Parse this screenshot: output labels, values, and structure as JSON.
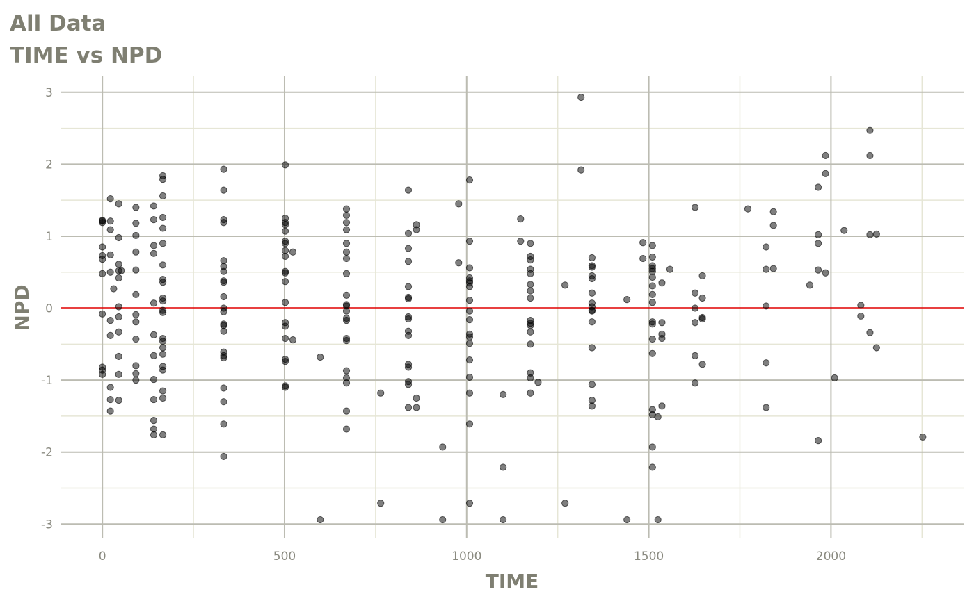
{
  "chart_data": {
    "type": "scatter",
    "title": "All Data",
    "subtitle": "TIME vs NPD",
    "xlabel": "TIME",
    "ylabel": "NPD",
    "xlim": [
      -113,
      2364
    ],
    "ylim": [
      -3.2,
      3.22
    ],
    "x_ticks": [
      0,
      500,
      1000,
      1500,
      2000
    ],
    "x_tick_labels": [
      "0",
      "500",
      "1000",
      "1500",
      "2000"
    ],
    "y_ticks": [
      -3,
      -2,
      -1,
      0,
      1,
      2,
      3
    ],
    "y_tick_labels": [
      "-3",
      "-2",
      "-1",
      "0",
      "1",
      "2",
      "3"
    ],
    "grid": true,
    "reference_line": {
      "y": 0,
      "color": "#e00000"
    },
    "point_color": "#000000",
    "point_alpha": 0.5,
    "groups": [
      {
        "x": 0,
        "y": [
          1.21,
          1.19,
          1.22,
          0.85,
          0.73,
          0.68,
          0.48,
          -0.08,
          -0.82,
          -0.86,
          -0.92
        ]
      },
      {
        "x": 22,
        "y": [
          1.52,
          1.21,
          1.09,
          0.74,
          0.5,
          -0.17,
          -0.38,
          -1.1,
          -1.27,
          -1.43
        ]
      },
      {
        "x": 31,
        "y": [
          0.27
        ]
      },
      {
        "x": 45,
        "y": [
          1.45,
          0.98,
          0.61,
          0.52,
          0.42,
          0.02,
          -0.12,
          -0.33,
          -0.67,
          -0.92,
          -1.28
        ]
      },
      {
        "x": 52,
        "y": [
          0.52
        ]
      },
      {
        "x": 92,
        "y": [
          1.4,
          1.18,
          1.01,
          0.78,
          0.53,
          0.19,
          -0.09,
          -0.19,
          -0.43,
          -0.8,
          -0.91,
          -1.0
        ]
      },
      {
        "x": 141,
        "y": [
          1.42,
          1.23,
          0.87,
          0.76,
          0.07,
          -0.37,
          -0.66,
          -0.99,
          -1.27,
          -1.56,
          -1.68,
          -1.76
        ]
      },
      {
        "x": 166,
        "y": [
          1.84,
          1.79,
          1.56,
          1.26,
          1.11,
          0.9,
          0.6,
          0.4,
          0.36,
          0.14,
          0.1,
          -0.03,
          -0.06,
          -0.42,
          -0.46,
          -0.55,
          -0.64,
          -0.81,
          -0.86,
          -1.15,
          -1.25,
          -1.76
        ]
      },
      {
        "x": 333,
        "y": [
          1.93,
          1.64,
          1.23,
          1.19,
          0.66,
          0.58,
          0.51,
          0.38,
          0.36,
          0.16,
          0.0,
          -0.05,
          -0.22,
          -0.24,
          -0.32,
          -0.61,
          -0.66,
          -0.69,
          -1.11,
          -1.3,
          -1.61,
          -2.06
        ]
      },
      {
        "x": 502,
        "y": [
          1.99,
          1.25,
          1.19,
          1.16,
          1.07,
          0.93,
          0.9,
          0.8,
          0.72,
          0.51,
          0.49,
          0.37,
          0.08,
          -0.2,
          -0.25,
          -0.42,
          -0.71,
          -0.74,
          -1.08,
          -1.1
        ]
      },
      {
        "x": 523,
        "y": [
          0.78,
          -0.44
        ]
      },
      {
        "x": 598,
        "y": [
          -0.68,
          -2.94
        ]
      },
      {
        "x": 670,
        "y": [
          1.38,
          1.29,
          1.19,
          1.09,
          0.9,
          0.78,
          0.69,
          0.48,
          0.18,
          0.05,
          0.03,
          -0.04,
          -0.14,
          -0.17,
          -0.42,
          -0.45,
          -0.87,
          -0.97,
          -1.04,
          -1.43,
          -1.68
        ]
      },
      {
        "x": 764,
        "y": [
          -1.18,
          -2.71
        ]
      },
      {
        "x": 840,
        "y": [
          1.64,
          1.04,
          0.83,
          0.65,
          0.3,
          0.15,
          0.13,
          -0.12,
          -0.15,
          -0.32,
          -0.38,
          -0.78,
          -0.82,
          -1.02,
          -1.06,
          -1.38
        ]
      },
      {
        "x": 862,
        "y": [
          1.16,
          1.09,
          -1.25,
          -1.38
        ]
      },
      {
        "x": 934,
        "y": [
          -1.93,
          -2.94
        ]
      },
      {
        "x": 978,
        "y": [
          0.63,
          1.45
        ]
      },
      {
        "x": 1008,
        "y": [
          1.78,
          0.93,
          0.56,
          0.42,
          0.38,
          0.35,
          0.3,
          0.11,
          -0.04,
          -0.16,
          -0.36,
          -0.4,
          -0.49,
          -0.72,
          -0.96,
          -1.18,
          -1.61,
          -2.71
        ]
      },
      {
        "x": 1100,
        "y": [
          -1.2,
          -2.21,
          -2.94
        ]
      },
      {
        "x": 1148,
        "y": [
          1.24,
          0.93
        ]
      },
      {
        "x": 1175,
        "y": [
          0.9,
          0.72,
          0.67,
          0.54,
          0.48,
          0.33,
          0.24,
          0.14,
          -0.17,
          -0.21,
          -0.24,
          -0.33,
          -0.5,
          -0.9,
          -0.97,
          -1.18
        ]
      },
      {
        "x": 1196,
        "y": [
          -1.03
        ]
      },
      {
        "x": 1270,
        "y": [
          0.32,
          -2.71
        ]
      },
      {
        "x": 1314,
        "y": [
          2.93,
          1.92
        ]
      },
      {
        "x": 1344,
        "y": [
          0.7,
          0.59,
          0.57,
          0.45,
          0.41,
          0.21,
          0.07,
          0.02,
          -0.03,
          -0.04,
          -0.19,
          -0.55,
          -1.06,
          -1.28,
          -1.36
        ]
      },
      {
        "x": 1440,
        "y": [
          0.12,
          -2.94
        ]
      },
      {
        "x": 1484,
        "y": [
          0.91,
          0.69
        ]
      },
      {
        "x": 1510,
        "y": [
          0.87,
          0.71,
          0.59,
          0.55,
          0.51,
          0.43,
          0.31,
          0.19,
          0.08,
          -0.19,
          -0.22,
          -0.43,
          -0.63,
          -1.41,
          -1.48,
          -1.93,
          -2.21
        ]
      },
      {
        "x": 1525,
        "y": [
          -1.51,
          -2.94
        ]
      },
      {
        "x": 1536,
        "y": [
          0.35,
          -0.2,
          -0.36,
          -0.42,
          -1.36
        ]
      },
      {
        "x": 1558,
        "y": [
          0.54
        ]
      },
      {
        "x": 1627,
        "y": [
          1.4,
          0.21,
          0.0,
          -0.2,
          -0.66,
          -1.04
        ]
      },
      {
        "x": 1647,
        "y": [
          0.14,
          -0.13,
          -0.15,
          -0.78,
          0.45
        ]
      },
      {
        "x": 1772,
        "y": [
          1.38
        ]
      },
      {
        "x": 1822,
        "y": [
          0.85,
          0.03,
          0.54,
          -1.38,
          -0.76
        ]
      },
      {
        "x": 1842,
        "y": [
          1.34,
          0.55,
          1.15
        ]
      },
      {
        "x": 1942,
        "y": [
          0.32
        ]
      },
      {
        "x": 1965,
        "y": [
          1.68,
          1.02,
          0.9,
          0.53,
          -1.84
        ]
      },
      {
        "x": 1985,
        "y": [
          1.87,
          0.49,
          2.12
        ]
      },
      {
        "x": 2010,
        "y": [
          -0.97
        ]
      },
      {
        "x": 2036,
        "y": [
          1.08
        ]
      },
      {
        "x": 2082,
        "y": [
          0.04,
          -0.11
        ]
      },
      {
        "x": 2107,
        "y": [
          2.47,
          2.12,
          1.02,
          -0.34
        ]
      },
      {
        "x": 2125,
        "y": [
          1.03,
          -0.55
        ]
      },
      {
        "x": 2252,
        "y": [
          -1.79
        ]
      }
    ]
  }
}
